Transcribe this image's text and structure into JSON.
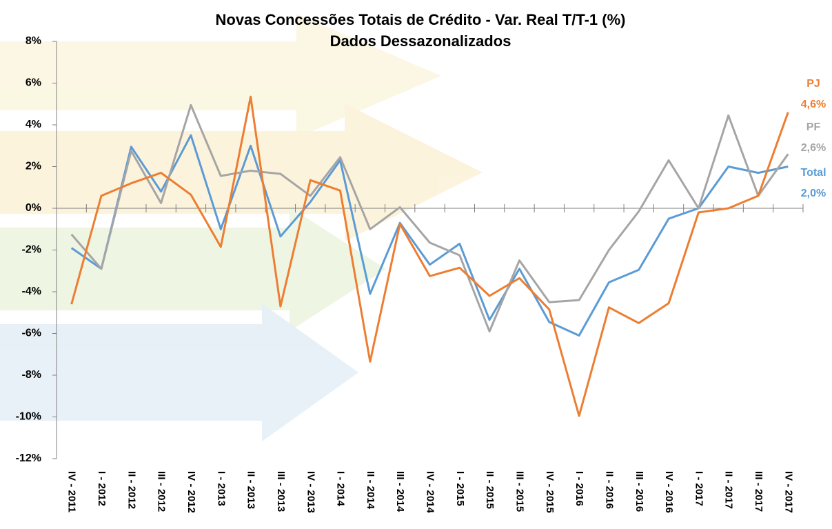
{
  "chart_data": {
    "type": "line",
    "title": "Novas Concessões Totais de Crédito - Var. Real T/T-1 (%)",
    "subtitle": "Dados Dessazonalizados",
    "categories": [
      "IV - 2011",
      "I - 2012",
      "II - 2012",
      "III - 2012",
      "IV - 2012",
      "I - 2013",
      "II - 2013",
      "III - 2013",
      "IV - 2013",
      "I - 2014",
      "II - 2014",
      "III - 2014",
      "IV - 2014",
      "I - 2015",
      "II - 2015",
      "III - 2015",
      "IV - 2015",
      "I - 2016",
      "II - 2016",
      "III - 2016",
      "IV - 2016",
      "I - 2017",
      "II - 2017",
      "III - 2017",
      "IV - 2017"
    ],
    "series": [
      {
        "name": "PJ",
        "color": "#ed7d31",
        "values": [
          -4.6,
          0.6,
          1.2,
          1.7,
          0.65,
          -1.85,
          5.35,
          -4.7,
          1.35,
          0.85,
          -7.35,
          -0.75,
          -3.25,
          -2.85,
          -4.2,
          -3.35,
          -4.85,
          -9.95,
          -4.75,
          -5.5,
          -4.55,
          -0.2,
          0.0,
          0.6,
          4.6
        ],
        "value_labels": [
          null,
          null,
          null,
          null,
          null,
          null,
          null,
          null,
          null,
          null,
          null,
          null,
          null,
          null,
          null,
          null,
          null,
          null,
          null,
          null,
          null,
          null,
          null,
          null,
          "4,6%"
        ]
      },
      {
        "name": "PF",
        "color": "#a5a5a5",
        "values": [
          -1.25,
          -2.9,
          2.75,
          0.25,
          4.95,
          1.55,
          1.8,
          1.65,
          0.6,
          2.45,
          -1.0,
          0.05,
          -1.65,
          -2.25,
          -5.9,
          -2.5,
          -4.5,
          -4.4,
          -2.0,
          -0.15,
          2.3,
          0.0,
          4.45,
          0.6,
          2.6
        ],
        "value_labels": [
          null,
          null,
          null,
          null,
          null,
          null,
          null,
          null,
          null,
          null,
          null,
          null,
          null,
          null,
          null,
          null,
          null,
          null,
          null,
          null,
          null,
          null,
          null,
          null,
          "2,6%"
        ]
      },
      {
        "name": "Total",
        "color": "#5b9bd5",
        "values": [
          -1.9,
          -2.9,
          2.95,
          0.8,
          3.5,
          -1.0,
          3.0,
          -1.35,
          0.3,
          2.3,
          -4.1,
          -0.7,
          -2.7,
          -1.7,
          -5.35,
          -2.9,
          -5.45,
          -6.1,
          -3.55,
          -2.95,
          -0.5,
          0.0,
          2.0,
          1.7,
          2.0
        ],
        "value_labels": [
          null,
          null,
          null,
          null,
          null,
          null,
          null,
          null,
          null,
          null,
          null,
          null,
          null,
          null,
          null,
          null,
          null,
          null,
          null,
          null,
          null,
          null,
          null,
          null,
          "2,0%"
        ]
      }
    ],
    "ylim": [
      -12,
      8
    ],
    "yticks": [
      {
        "value": -12,
        "label": "-12%"
      },
      {
        "value": -10,
        "label": "-10%"
      },
      {
        "value": -8,
        "label": "-8%"
      },
      {
        "value": -6,
        "label": "-6%"
      },
      {
        "value": -4,
        "label": "-4%"
      },
      {
        "value": -2,
        "label": "-2%"
      },
      {
        "value": 0,
        "label": "0%"
      },
      {
        "value": 2,
        "label": "2%"
      },
      {
        "value": 4,
        "label": "4%"
      },
      {
        "value": 6,
        "label": "6%"
      },
      {
        "value": 8,
        "label": "8%"
      }
    ]
  }
}
